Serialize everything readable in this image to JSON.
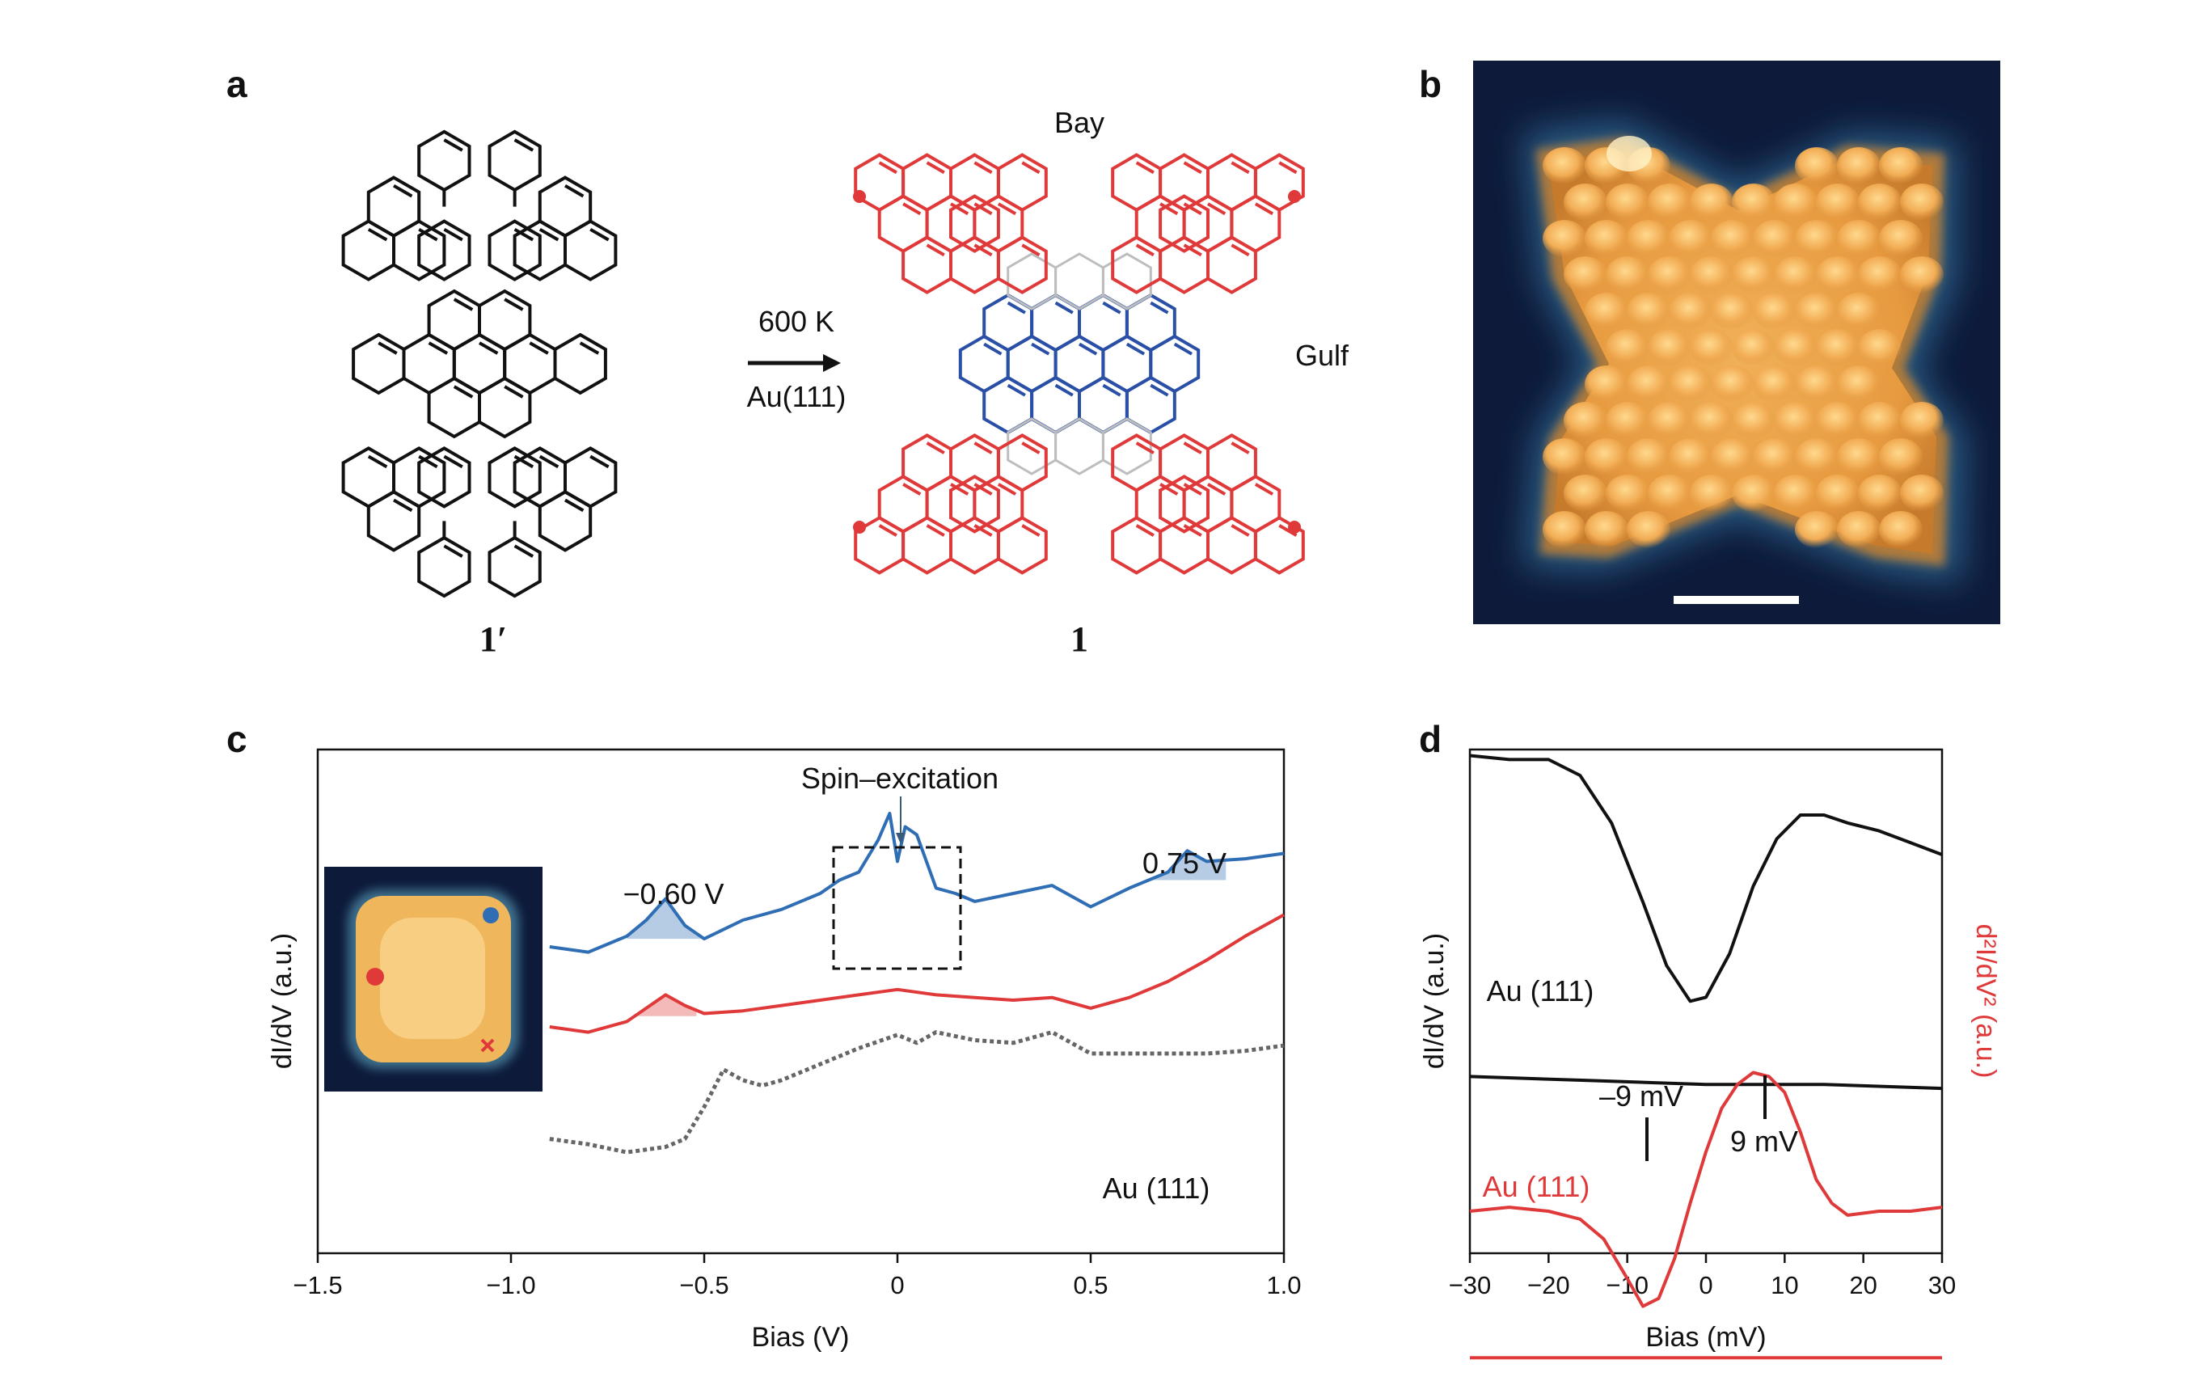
{
  "panel_labels": {
    "a": "a",
    "b": "b",
    "c": "c",
    "d": "d"
  },
  "panel_a": {
    "reaction_condition_temperature": "600 K",
    "reaction_condition_substrate": "Au(111)",
    "precursor_label": "1′",
    "product_label": "1",
    "bay_label": "Bay",
    "gulf_label": "Gulf",
    "colors": {
      "precursor": "#111111",
      "product_outer": "#e0393a",
      "product_core": "#2a4fa6",
      "new_bonds": "#bdbdbd"
    }
  },
  "panel_b": {
    "image": "STM topography of molecule 1",
    "has_scale_bar": true
  },
  "chart_data": [
    {
      "panel": "c",
      "type": "line",
      "xlabel": "Bias (V)",
      "ylabel": "dI/dV (a.u.)",
      "xlim": [
        -1.5,
        1.0
      ],
      "xticks": [
        "−1.5",
        "−1.0",
        "−0.5",
        "0",
        "0.5",
        "1.0"
      ],
      "xtick_values": [
        -1.5,
        -1.0,
        -0.5,
        0,
        0.5,
        1.0
      ],
      "series": [
        {
          "color": "#2f6db5",
          "x": [
            -0.9,
            -0.8,
            -0.7,
            -0.65,
            -0.6,
            -0.55,
            -0.5,
            -0.4,
            -0.3,
            -0.2,
            -0.15,
            -0.1,
            -0.05,
            -0.02,
            0.0,
            0.02,
            0.05,
            0.1,
            0.15,
            0.2,
            0.3,
            0.4,
            0.5,
            0.6,
            0.7,
            0.75,
            0.8,
            0.9,
            1.0
          ],
          "y": [
            0.3,
            0.28,
            0.34,
            0.4,
            0.48,
            0.38,
            0.33,
            0.4,
            0.44,
            0.5,
            0.55,
            0.58,
            0.7,
            0.8,
            0.62,
            0.75,
            0.72,
            0.52,
            0.5,
            0.47,
            0.5,
            0.53,
            0.45,
            0.52,
            0.58,
            0.66,
            0.62,
            0.63,
            0.65
          ]
        },
        {
          "color": "#e0393a",
          "x": [
            -0.9,
            -0.8,
            -0.7,
            -0.6,
            -0.55,
            -0.5,
            -0.4,
            -0.3,
            -0.2,
            -0.1,
            0.0,
            0.1,
            0.2,
            0.3,
            0.4,
            0.45,
            0.5,
            0.6,
            0.7,
            0.8,
            0.9,
            1.0
          ],
          "y": [
            0.0,
            -0.02,
            0.02,
            0.12,
            0.08,
            0.05,
            0.06,
            0.08,
            0.1,
            0.12,
            0.14,
            0.12,
            0.11,
            0.1,
            0.11,
            0.09,
            0.07,
            0.11,
            0.17,
            0.25,
            0.34,
            0.42
          ]
        },
        {
          "color": "#666666",
          "x": [
            -0.9,
            -0.8,
            -0.7,
            -0.6,
            -0.55,
            -0.5,
            -0.45,
            -0.4,
            -0.35,
            -0.3,
            -0.2,
            -0.1,
            0.0,
            0.05,
            0.1,
            0.2,
            0.3,
            0.4,
            0.5,
            0.6,
            0.7,
            0.8,
            0.9,
            1.0
          ],
          "y": [
            -0.42,
            -0.44,
            -0.47,
            -0.45,
            -0.42,
            -0.3,
            -0.16,
            -0.2,
            -0.22,
            -0.2,
            -0.14,
            -0.08,
            -0.03,
            -0.06,
            -0.02,
            -0.05,
            -0.06,
            -0.02,
            -0.1,
            -0.1,
            -0.1,
            -0.1,
            -0.09,
            -0.07
          ]
        }
      ],
      "peak_shading": [
        {
          "series": 0,
          "x": [
            -0.7,
            -0.5
          ]
        },
        {
          "series": 0,
          "x": [
            0.65,
            0.85
          ]
        },
        {
          "series": 1,
          "x": [
            -0.68,
            -0.52
          ]
        }
      ],
      "annotations": {
        "spin": "Spin–excitation",
        "peak_neg": "−0.60 V",
        "peak_pos": "0.75 V",
        "au": "Au (111)"
      },
      "inset": {
        "description": "STM image with tip positions",
        "markers": [
          "blue-dot",
          "red-dot",
          "red-cross"
        ]
      }
    },
    {
      "panel": "d",
      "type": "line",
      "xlabel": "Bias (mV)",
      "ylabel_left": "dI/dV (a.u.)",
      "ylabel_right": "d²I/dV² (a.u.)",
      "xlim": [
        -30,
        30
      ],
      "xticks": [
        "−30",
        "−20",
        "−10",
        "0",
        "10",
        "20",
        "30"
      ],
      "xtick_values": [
        -30,
        -20,
        -10,
        0,
        10,
        20,
        30
      ],
      "series": [
        {
          "color": "#111111",
          "x": [
            -30,
            -25,
            -20,
            -16,
            -12,
            -8,
            -5,
            -2,
            0,
            3,
            6,
            9,
            12,
            15,
            18,
            22,
            26,
            30
          ],
          "y": [
            0.95,
            0.94,
            0.94,
            0.9,
            0.78,
            0.58,
            0.42,
            0.33,
            0.34,
            0.45,
            0.62,
            0.74,
            0.8,
            0.8,
            0.78,
            0.76,
            0.73,
            0.7
          ]
        },
        {
          "color": "#111111",
          "x": [
            -30,
            -15,
            0,
            15,
            30
          ],
          "y": [
            0.14,
            0.13,
            0.12,
            0.12,
            0.11
          ]
        },
        {
          "color": "#e0393a",
          "x": [
            -30,
            -25,
            -20,
            -16,
            -13,
            -10,
            -8,
            -6,
            -4,
            -2,
            0,
            2,
            4,
            6,
            8,
            10,
            12,
            14,
            16,
            18,
            22,
            26,
            30
          ],
          "y": [
            -0.2,
            -0.19,
            -0.2,
            -0.22,
            -0.27,
            -0.37,
            -0.44,
            -0.42,
            -0.32,
            -0.18,
            -0.05,
            0.06,
            0.12,
            0.15,
            0.14,
            0.1,
            0.0,
            -0.12,
            -0.18,
            -0.21,
            -0.2,
            -0.2,
            -0.19
          ]
        },
        {
          "color": "#e0393a",
          "x": [
            -30,
            -15,
            0,
            15,
            30
          ],
          "y": [
            -0.57,
            -0.57,
            -0.57,
            -0.57,
            -0.57
          ]
        }
      ],
      "annotations": {
        "au_black": "Au (111)",
        "au_red": "Au (111)",
        "minus9": "–9 mV",
        "plus9": "9 mV",
        "minus9_x": -7.5,
        "plus9_x": 7.5
      }
    }
  ]
}
